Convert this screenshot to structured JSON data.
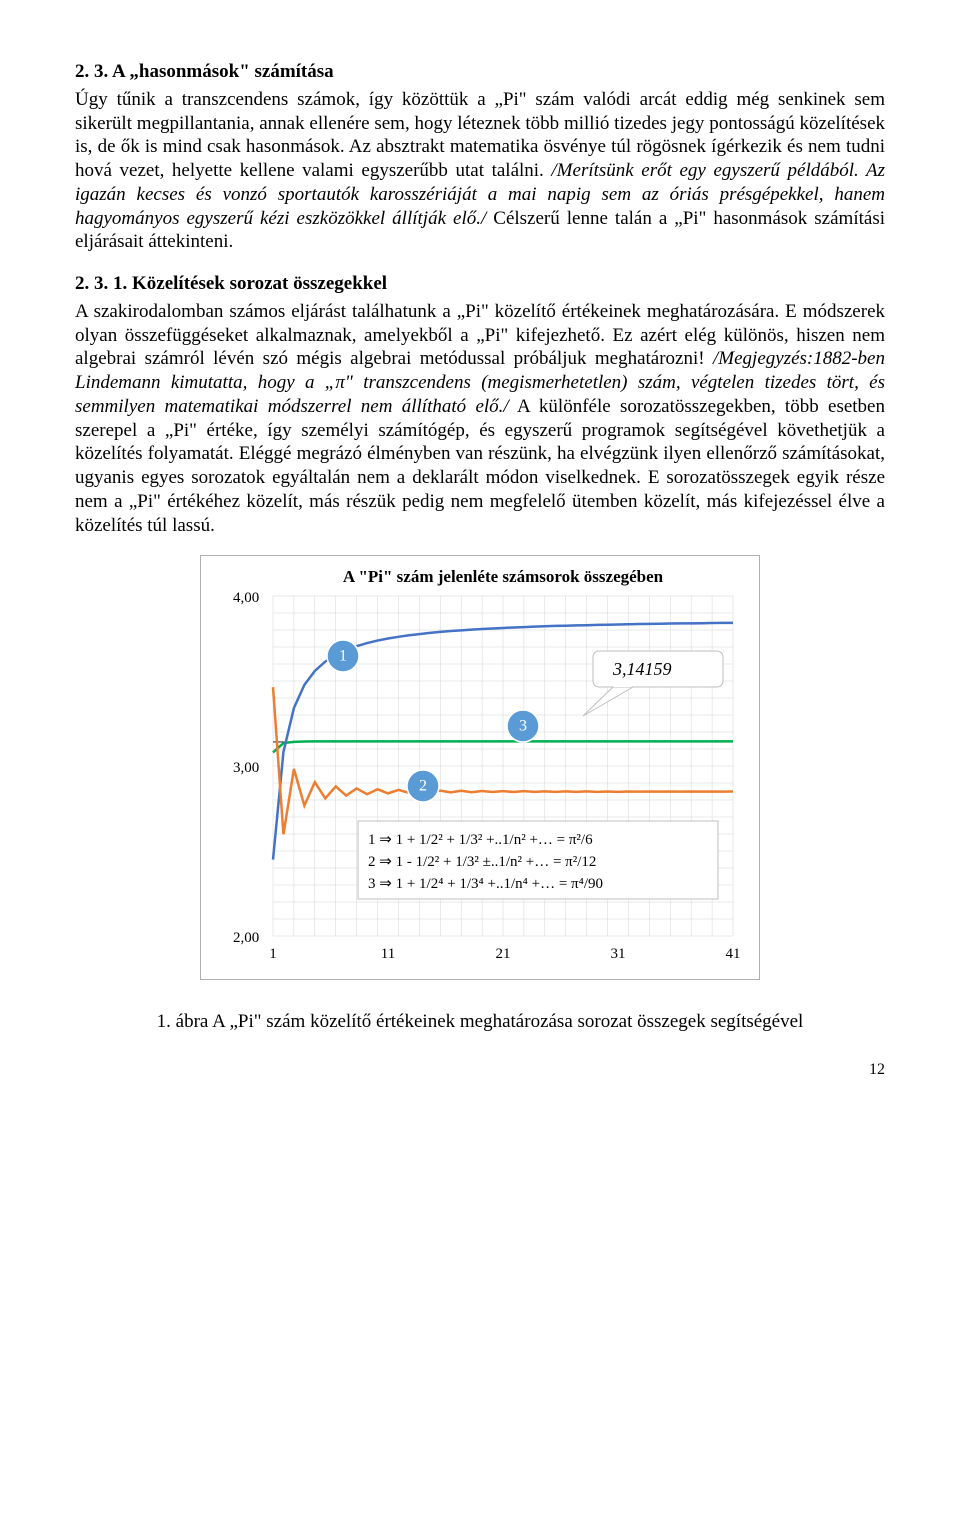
{
  "section1": {
    "heading": "2. 3. A „hasonmások\" számítása",
    "para": "Úgy tűnik a transzcendens számok, így közöttük a „Pi\" szám valódi arcát eddig még senkinek sem sikerült megpillantania, annak ellenére sem, hogy léteznek több millió tizedes jegy pontosságú közelítések is, de ők is mind csak hasonmások. Az absztrakt matematika ösvénye túl rögösnek ígérkezik és nem tudni hová vezet, helyette kellene valami egyszerűbb utat találni. /Merítsünk erőt egy egyszerű példából. Az igazán kecses és vonzó sportautók karosszériáját a mai napig sem az óriás présgépekkel, hanem hagyományos egyszerű kézi eszközökkel állítják elő./ Célszerű lenne talán a „Pi\" hasonmások számítási eljárásait áttekinteni."
  },
  "section2": {
    "heading": "2. 3. 1. Közelítések sorozat összegekkel",
    "para": "A szakirodalomban számos eljárást találhatunk a „Pi\" közelítő értékeinek meghatározására. E módszerek olyan összefüggéseket alkalmaznak, amelyekből a „Pi\" kifejezhető. Ez azért elég különös, hiszen nem algebrai számról lévén szó mégis algebrai metódussal próbáljuk meghatározni! /Megjegyzés:1882-ben Lindemann kimutatta, hogy a „π\" transzcendens (megismerhetetlen) szám, végtelen tizedes tört, és semmilyen matematikai módszerrel nem állítható elő./ A különféle sorozatösszegekben, több esetben szerepel a „Pi\" értéke, így személyi számítógép, és egyszerű programok segítségével követhetjük a közelítés folyamatát. Eléggé megrázó élményben van részünk, ha elvégzünk ilyen ellenőrző számításokat, ugyanis egyes sorozatok egyáltalán nem a deklarált módon viselkednek. E sorozatösszegek egyik része nem a „Pi\" értékéhez közelít, más részük pedig nem megfelelő ütemben közelít, más kifejezéssel élve a közelítés túl lassú."
  },
  "chart": {
    "title": "A  \"Pi\" szám jelenléte számsorok összegében",
    "y_labels": [
      "4,00",
      "3,00",
      "2,00"
    ],
    "y_values": [
      4.0,
      3.0,
      2.0
    ],
    "x_labels": [
      "1",
      "11",
      "21",
      "31",
      "41"
    ],
    "x_values": [
      1,
      11,
      21,
      31,
      41
    ],
    "callout": "3,14159",
    "pi_line_y": 3.14159,
    "colors": {
      "series1": "#4472c4",
      "series2": "#ed7d31",
      "series3": "#00b050",
      "grid": "#d5d5d5",
      "badge_fill": "#5b9bd5",
      "box_stroke": "#bfbfbf"
    },
    "badges": [
      "1",
      "2",
      "3"
    ],
    "formulas": [
      "1 ⇒ 1 + 1/2² + 1/3² +..1/n² +… = π²/6",
      "2 ⇒ 1 - 1/2² + 1/3² ±..1/n² +… = π²/12",
      "3 ⇒  1 + 1/2⁴ + 1/3⁴ +..1/n⁴ +… = π⁴/90"
    ],
    "series1_pts": [
      [
        1,
        2.449
      ],
      [
        2,
        3.083
      ],
      [
        3,
        3.341
      ],
      [
        4,
        3.477
      ],
      [
        5,
        3.559
      ],
      [
        6,
        3.614
      ],
      [
        7,
        3.653
      ],
      [
        8,
        3.682
      ],
      [
        9,
        3.705
      ],
      [
        10,
        3.723
      ],
      [
        11,
        3.738
      ],
      [
        12,
        3.75
      ],
      [
        13,
        3.76
      ],
      [
        14,
        3.769
      ],
      [
        15,
        3.776
      ],
      [
        16,
        3.783
      ],
      [
        17,
        3.789
      ],
      [
        18,
        3.794
      ],
      [
        19,
        3.798
      ],
      [
        20,
        3.802
      ],
      [
        21,
        3.806
      ],
      [
        22,
        3.809
      ],
      [
        23,
        3.812
      ],
      [
        24,
        3.815
      ],
      [
        25,
        3.817
      ],
      [
        26,
        3.82
      ],
      [
        27,
        3.822
      ],
      [
        28,
        3.824
      ],
      [
        29,
        3.825
      ],
      [
        30,
        3.827
      ],
      [
        31,
        3.828
      ],
      [
        32,
        3.83
      ],
      [
        33,
        3.831
      ],
      [
        34,
        3.832
      ],
      [
        35,
        3.834
      ],
      [
        36,
        3.835
      ],
      [
        37,
        3.836
      ],
      [
        38,
        3.837
      ],
      [
        39,
        3.838
      ],
      [
        40,
        3.839
      ],
      [
        41,
        3.839
      ],
      [
        42,
        3.84
      ],
      [
        43,
        3.841
      ],
      [
        44,
        3.842
      ],
      [
        45,
        3.842
      ]
    ],
    "series2_pts": [
      [
        1,
        3.464
      ],
      [
        2,
        2.598
      ],
      [
        3,
        2.983
      ],
      [
        4,
        2.767
      ],
      [
        5,
        2.905
      ],
      [
        6,
        2.809
      ],
      [
        7,
        2.88
      ],
      [
        8,
        2.826
      ],
      [
        9,
        2.868
      ],
      [
        10,
        2.834
      ],
      [
        11,
        2.863
      ],
      [
        12,
        2.839
      ],
      [
        13,
        2.859
      ],
      [
        14,
        2.842
      ],
      [
        15,
        2.857
      ],
      [
        16,
        2.844
      ],
      [
        17,
        2.855
      ],
      [
        18,
        2.845
      ],
      [
        19,
        2.854
      ],
      [
        20,
        2.846
      ],
      [
        21,
        2.853
      ],
      [
        22,
        2.847
      ],
      [
        23,
        2.852
      ],
      [
        24,
        2.847
      ],
      [
        25,
        2.852
      ],
      [
        26,
        2.848
      ],
      [
        27,
        2.851
      ],
      [
        28,
        2.848
      ],
      [
        29,
        2.851
      ],
      [
        30,
        2.848
      ],
      [
        31,
        2.851
      ],
      [
        32,
        2.848
      ],
      [
        33,
        2.85
      ],
      [
        34,
        2.848
      ],
      [
        35,
        2.85
      ],
      [
        36,
        2.849
      ],
      [
        37,
        2.85
      ],
      [
        38,
        2.849
      ],
      [
        39,
        2.85
      ],
      [
        40,
        2.849
      ],
      [
        41,
        2.85
      ],
      [
        42,
        2.849
      ],
      [
        43,
        2.85
      ],
      [
        44,
        2.849
      ],
      [
        45,
        2.85
      ]
    ],
    "series3_pts": [
      [
        1,
        3.08
      ],
      [
        2,
        3.135
      ],
      [
        3,
        3.142
      ],
      [
        4,
        3.144
      ],
      [
        5,
        3.145
      ],
      [
        6,
        3.145
      ],
      [
        7,
        3.145
      ],
      [
        8,
        3.145
      ],
      [
        9,
        3.145
      ],
      [
        10,
        3.145
      ],
      [
        45,
        3.145
      ]
    ]
  },
  "caption": "1. ábra A „Pi\" szám közelítő értékeinek meghatározása sorozat összegek segítségével",
  "pagenum": "12"
}
